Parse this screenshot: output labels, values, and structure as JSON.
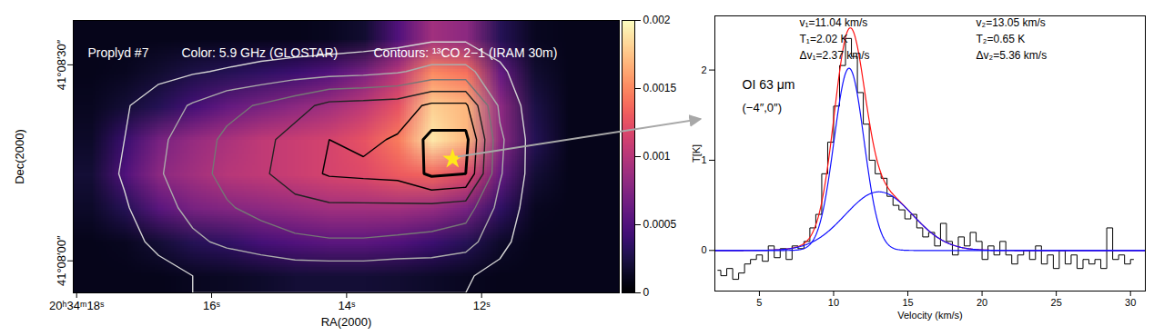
{
  "chart_data": [
    {
      "type": "heatmap",
      "annotations": [
        "Proplyd #7",
        "Color: 5.9 GHz (GLOSTAR)",
        "Contours: ¹³CO 2−1 (IRAM 30m)"
      ],
      "xlabel": "RA(2000)",
      "ylabel": "Dec(2000)",
      "xlim": [
        18.05,
        9.96
      ],
      "xticks": [
        {
          "value": 18,
          "label": "20ʰ34ᵐ18ˢ"
        },
        {
          "value": 16,
          "label": "16ˢ"
        },
        {
          "value": 14,
          "label": "14ˢ"
        },
        {
          "value": 12,
          "label": "12ˢ"
        }
      ],
      "ylim": [
        -4.9,
        36.8
      ],
      "yticks": [
        {
          "value": 0,
          "label": "41°08′00″"
        },
        {
          "value": 30,
          "label": "41°08′30″"
        }
      ],
      "values": [
        [
          0.0001,
          0.0001,
          0.0001,
          0.0001,
          0.0001,
          0.0001,
          0.0001,
          0.00012,
          0.00018,
          0.0005,
          0.0009,
          0.0008,
          0.0003,
          0.00012,
          0.0001,
          0.0001
        ],
        [
          0.0001,
          0.00012,
          0.00018,
          0.00025,
          0.0003,
          0.00035,
          0.0004,
          0.0005,
          0.0007,
          0.001,
          0.0015,
          0.0014,
          0.0006,
          0.00018,
          0.0001,
          0.0001
        ],
        [
          0.00012,
          0.0002,
          0.0003,
          0.00045,
          0.0006,
          0.0007,
          0.0008,
          0.0009,
          0.00105,
          0.00125,
          0.0018,
          0.0017,
          0.0008,
          0.00025,
          0.0001,
          0.0001
        ],
        [
          0.00015,
          0.0004,
          0.0007,
          0.00085,
          0.00095,
          0.00105,
          0.0011,
          0.00115,
          0.00125,
          0.00145,
          0.0019,
          0.0017,
          0.0008,
          0.0003,
          0.0001,
          0.0001
        ],
        [
          0.0002,
          0.0005,
          0.0008,
          0.0009,
          0.001,
          0.00105,
          0.0011,
          0.00115,
          0.0012,
          0.0013,
          0.00135,
          0.0012,
          0.0006,
          0.0002,
          0.0001,
          0.0001
        ],
        [
          0.00015,
          0.0003,
          0.00055,
          0.0007,
          0.00075,
          0.0008,
          0.00085,
          0.0009,
          0.0009,
          0.0009,
          0.00085,
          0.0007,
          0.00035,
          0.00012,
          0.0001,
          0.0001
        ],
        [
          0.0001,
          0.00012,
          0.0002,
          0.0003,
          0.00035,
          0.00045,
          0.0005,
          0.00055,
          0.00055,
          0.0005,
          0.0004,
          0.0003,
          0.00015,
          0.0001,
          0.0001,
          0.0001
        ],
        [
          0.0001,
          0.0001,
          0.0001,
          0.00012,
          0.00014,
          0.00016,
          0.0002,
          0.0002,
          0.0002,
          0.00018,
          0.00015,
          0.00012,
          0.0001,
          0.0001,
          0.0001,
          0.0001
        ]
      ],
      "colorbar": {
        "range": [
          0,
          0.002
        ],
        "ticks": [
          0,
          0.0005,
          0.001,
          0.0015,
          0.002
        ]
      },
      "contours": {
        "values": [
          [
            0.2,
            0.2,
            0.2,
            0.2,
            0.2,
            0.3,
            0.3,
            0.4,
            0.5,
            0.6,
            0.8,
            0.8,
            0.5,
            0.2,
            0.2,
            0.2
          ],
          [
            0.2,
            0.4,
            0.7,
            0.9,
            1.1,
            1.3,
            1.5,
            1.6,
            1.7,
            1.9,
            2.3,
            2.3,
            1.2,
            0.3,
            0.2,
            0.2
          ],
          [
            0.4,
            0.9,
            1.5,
            2.1,
            2.7,
            3.1,
            3.6,
            4.3,
            4.4,
            4.5,
            5.2,
            5.2,
            1.8,
            0.5,
            0.2,
            0.2
          ],
          [
            0.5,
            1.0,
            1.8,
            2.5,
            3.2,
            3.7,
            4.4,
            5.0,
            4.8,
            5.1,
            6.3,
            6.3,
            2.2,
            0.6,
            0.2,
            0.2
          ],
          [
            0.5,
            1.1,
            1.9,
            2.6,
            3.3,
            3.8,
            4.6,
            5.1,
            5.2,
            5.3,
            6.2,
            6.0,
            2.1,
            0.6,
            0.2,
            0.2
          ],
          [
            0.4,
            0.9,
            1.6,
            2.3,
            2.9,
            3.3,
            3.6,
            3.8,
            3.8,
            3.8,
            3.7,
            3.5,
            1.7,
            0.5,
            0.2,
            0.2
          ],
          [
            0.3,
            0.7,
            1.2,
            1.8,
            2.2,
            2.5,
            2.8,
            2.9,
            2.9,
            2.8,
            2.7,
            2.4,
            1.3,
            0.4,
            0.2,
            0.2
          ],
          [
            0.2,
            0.4,
            0.7,
            1.0,
            1.1,
            1.2,
            1.3,
            1.3,
            1.3,
            1.2,
            1.2,
            1.1,
            0.7,
            0.3,
            0.2,
            0.2
          ]
        ],
        "levels": [
          1,
          2,
          3,
          4,
          5,
          6
        ],
        "colors": [
          "#d4d4d4",
          "#ababab",
          "#767676",
          "#222222",
          "#000000",
          "#000000"
        ]
      },
      "points": [
        {
          "x": 12.43,
          "y": 15.6
        }
      ],
      "marker": "star",
      "color": "#ffe81a"
    },
    {
      "type": "line",
      "title": "OI 63 μm",
      "subtitle": "(−4″,0″)",
      "xlabel": "Velocity (km/s)",
      "ylabel": "T[K]",
      "xlim": [
        2,
        31
      ],
      "xticks": [
        5,
        10,
        15,
        20,
        25,
        30
      ],
      "ylim": [
        -0.45,
        2.6
      ],
      "yticks": [
        0,
        1,
        2
      ],
      "x": [
        2.2,
        2.6,
        3.0,
        3.4,
        3.8,
        4.2,
        4.6,
        5.0,
        5.4,
        5.8,
        6.2,
        6.6,
        7.0,
        7.4,
        7.8,
        8.2,
        8.6,
        9.0,
        9.4,
        9.8,
        10.2,
        10.6,
        11.0,
        11.4,
        11.8,
        12.2,
        12.6,
        13.0,
        13.4,
        13.8,
        14.2,
        14.6,
        15.0,
        15.4,
        15.8,
        16.2,
        16.6,
        17.0,
        17.4,
        17.8,
        18.2,
        18.6,
        19.0,
        19.4,
        19.8,
        20.2,
        20.6,
        21.0,
        21.4,
        21.8,
        22.2,
        22.6,
        23.0,
        23.4,
        23.8,
        24.2,
        24.6,
        25.0,
        25.4,
        25.8,
        26.2,
        26.6,
        27.0,
        27.4,
        27.8,
        28.2,
        28.6,
        29.0,
        29.4,
        29.8,
        30.2
      ],
      "values": [
        -0.22,
        -0.28,
        -0.2,
        -0.32,
        -0.25,
        -0.15,
        -0.1,
        -0.05,
        -0.12,
        0.05,
        -0.08,
        0.02,
        -0.1,
        0.05,
        0.02,
        0.1,
        0.25,
        0.4,
        0.85,
        1.2,
        1.6,
        2.05,
        2.35,
        2.15,
        1.75,
        1.4,
        1.0,
        0.85,
        0.8,
        0.6,
        0.5,
        0.45,
        0.35,
        0.4,
        0.25,
        0.15,
        0.2,
        0.05,
        0.3,
        0.1,
        -0.05,
        0.15,
        0.05,
        0.2,
        0.1,
        -0.1,
        0.05,
        -0.05,
        0.1,
        -0.05,
        -0.15,
        -0.05,
        0,
        -0.1,
        0.05,
        -0.15,
        -0.05,
        -0.2,
        0,
        -0.15,
        -0.05,
        -0.2,
        -0.1,
        -0.15,
        -0.1,
        -0.2,
        0.25,
        -0.1,
        -0.05,
        -0.15,
        -0.1
      ],
      "color": "#000000",
      "line_style": "step",
      "fits": [
        {
          "v": 11.04,
          "T": 2.02,
          "dv": 2.37,
          "color": "#1010ff",
          "labels": [
            "v₁=11.04 km/s",
            "T₁=2.02 K",
            "Δv₁=2.37 km/s"
          ]
        },
        {
          "v": 13.05,
          "T": 0.65,
          "dv": 5.36,
          "color": "#1010ff",
          "labels": [
            "v₂=13.05 km/s",
            "T₂=0.65 K",
            "Δv₂=5.36 km/s"
          ]
        }
      ],
      "fit_total": {
        "color": "#ff1010"
      }
    }
  ]
}
